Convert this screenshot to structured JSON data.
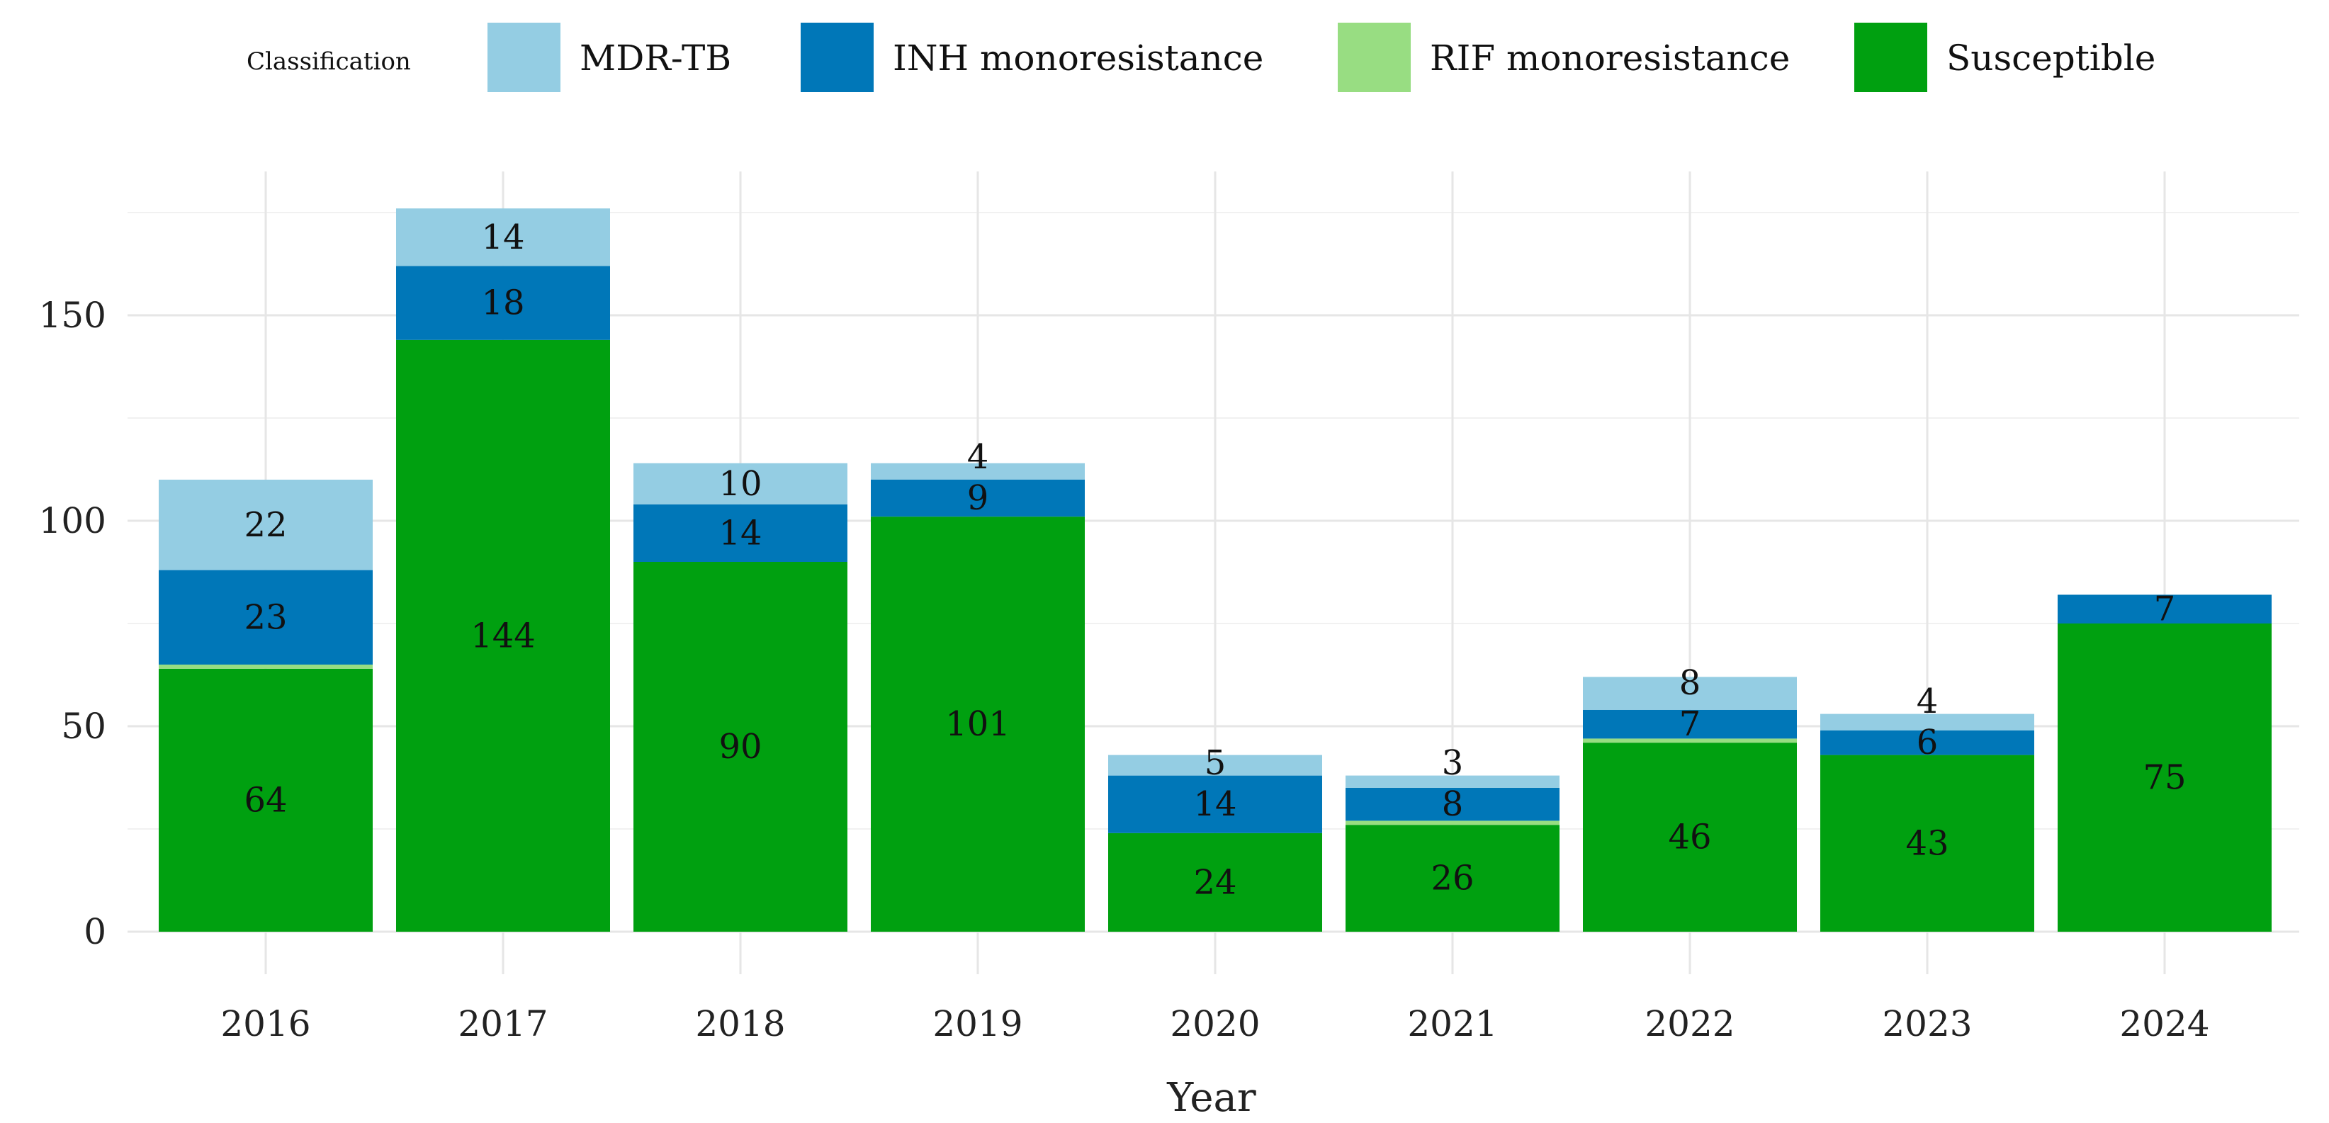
{
  "chart_data": {
    "type": "bar",
    "stacked": true,
    "title": "",
    "xlabel": "Year",
    "ylabel": "",
    "ylim": [
      0,
      185
    ],
    "yticks": [
      0,
      50,
      100,
      150
    ],
    "grid": true,
    "legend": {
      "title": "Classification",
      "placement": "top"
    },
    "categories": [
      "2016",
      "2017",
      "2018",
      "2019",
      "2020",
      "2021",
      "2022",
      "2023",
      "2024"
    ],
    "series": [
      {
        "name": "Susceptible",
        "color": "#00a010",
        "show_labels": true,
        "values": [
          64,
          144,
          90,
          101,
          24,
          26,
          46,
          43,
          75
        ]
      },
      {
        "name": "RIF monoresistance",
        "color": "#98dd82",
        "show_labels": false,
        "values": [
          1,
          0,
          0,
          0,
          0,
          1,
          1,
          0,
          0
        ]
      },
      {
        "name": "INH monoresistance",
        "color": "#0077b8",
        "show_labels": true,
        "values": [
          23,
          18,
          14,
          9,
          14,
          8,
          7,
          6,
          7
        ]
      },
      {
        "name": "MDR-TB",
        "color": "#94cde3",
        "show_labels": true,
        "values": [
          22,
          14,
          10,
          4,
          5,
          3,
          8,
          4,
          0
        ]
      }
    ],
    "legend_order": [
      "MDR-TB",
      "INH monoresistance",
      "RIF monoresistance",
      "Susceptible"
    ]
  }
}
